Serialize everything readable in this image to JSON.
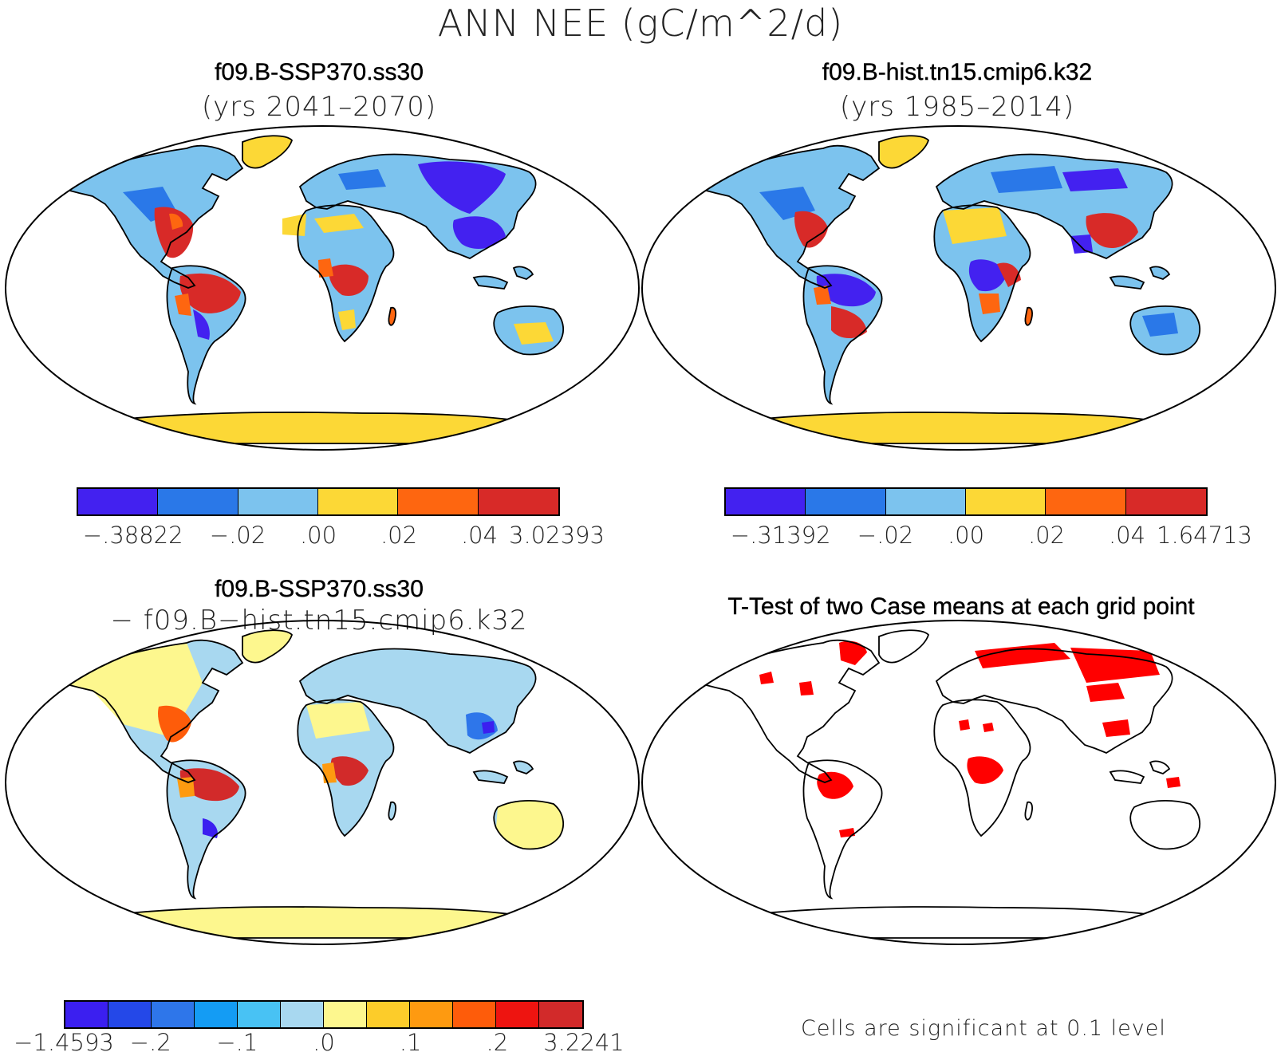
{
  "main_title": "ANN NEE (gC/m^2/d)",
  "panels": {
    "top_left": {
      "case": "f09.B-SSP370.ss30",
      "years": "(yrs 2041–2070)",
      "colorbar": {
        "colors": [
          "#4321f0",
          "#2a78e8",
          "#7cc3ee",
          "#fcd836",
          "#fe6610",
          "#d82a28"
        ],
        "ticks": [
          "−.38822",
          "−.02",
          ".00",
          ".02",
          ".04",
          "3.02393"
        ]
      }
    },
    "top_right": {
      "case": "f09.B-hist.tn15.cmip6.k32",
      "years": "(yrs 1985–2014)",
      "colorbar": {
        "colors": [
          "#4321f0",
          "#2a78e8",
          "#7cc3ee",
          "#fcd836",
          "#fe6610",
          "#d82a28"
        ],
        "ticks": [
          "−.31392",
          "−.02",
          ".00",
          ".02",
          ".04",
          "1.64713"
        ]
      }
    },
    "bottom_left": {
      "case": "f09.B-SSP370.ss30",
      "minus_case": "− f09.B−hist.tn15.cmip6.k32",
      "colorbar": {
        "colors": [
          "#3b1ff0",
          "#2448e8",
          "#2e76ea",
          "#149cf4",
          "#48c2f4",
          "#a8d8f0",
          "#fdf78e",
          "#fccc2a",
          "#fe9a10",
          "#fe5c0a",
          "#ee1410",
          "#d22a2a"
        ],
        "ticks": [
          "−1.4593",
          "−.2",
          "−.1",
          ".0",
          ".1",
          ".2",
          "3.2241"
        ]
      }
    },
    "bottom_right": {
      "title": "T-Test of two Case means at each grid point",
      "note": "Cells are significant at 0.1 level",
      "significant_color": "#ff0000"
    }
  }
}
